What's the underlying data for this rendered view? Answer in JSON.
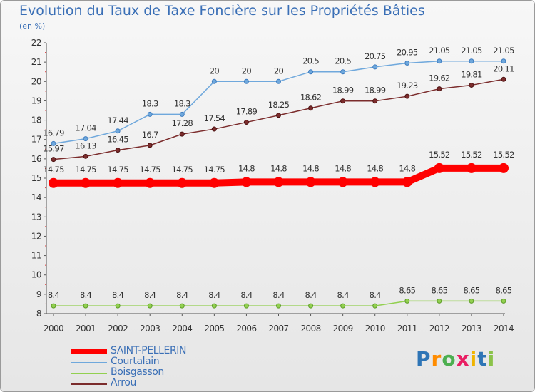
{
  "title": "Evolution du Taux de Taxe Foncière sur les Propriétés Bâties",
  "subtitle": "(en %)",
  "logo": "Proxiti",
  "chart_data": {
    "type": "line",
    "title": "Evolution du Taux de Taxe Foncière sur les Propriétés Bâties",
    "ylabel": "(en %)",
    "xlabel": "",
    "ylim": [
      8,
      22
    ],
    "yticks": [
      8,
      9,
      10,
      11,
      12,
      13,
      14,
      15,
      16,
      17,
      18,
      19,
      20,
      21,
      22
    ],
    "grid": false,
    "legend_position": "bottom-left",
    "x": [
      "2000",
      "2001",
      "2002",
      "2003",
      "2004",
      "2005",
      "2006",
      "2007",
      "2008",
      "2009",
      "2010",
      "2011",
      "2012",
      "2013",
      "2014"
    ],
    "series": [
      {
        "name": "SAINT-PELLERIN",
        "color": "#ff0000",
        "values": [
          14.75,
          14.75,
          14.75,
          14.75,
          14.75,
          14.75,
          14.8,
          14.8,
          14.8,
          14.8,
          14.8,
          14.8,
          15.52,
          15.52,
          15.52
        ],
        "labels": [
          "14.75",
          "14.75",
          "14.75",
          "14.75",
          "14.75",
          "14.75",
          "14.8",
          "14.8",
          "14.8",
          "14.8",
          "14.8",
          "14.8",
          "15.52",
          "15.52",
          "15.52"
        ]
      },
      {
        "name": "Courtalain",
        "color": "#6fa8dc",
        "values": [
          16.79,
          17.04,
          17.44,
          18.3,
          18.3,
          20,
          20,
          20,
          20.5,
          20.5,
          20.75,
          20.95,
          21.05,
          21.05,
          21.05
        ],
        "labels": [
          "16.79",
          "17.04",
          "17.44",
          "18.3",
          "18.3",
          "20",
          "20",
          "20",
          "20.5",
          "20.5",
          "20.75",
          "20.95",
          "21.05",
          "21.05",
          "21.05"
        ]
      },
      {
        "name": "Boisgasson",
        "color": "#92d050",
        "values": [
          8.4,
          8.4,
          8.4,
          8.4,
          8.4,
          8.4,
          8.4,
          8.4,
          8.4,
          8.4,
          8.4,
          8.65,
          8.65,
          8.65,
          8.65
        ],
        "labels": [
          "8.4",
          "8.4",
          "8.4",
          "8.4",
          "8.4",
          "8.4",
          "8.4",
          "8.4",
          "8.4",
          "8.4",
          "8.4",
          "8.65",
          "8.65",
          "8.65",
          "8.65"
        ]
      },
      {
        "name": "Arrou",
        "color": "#7b2c2c",
        "values": [
          15.97,
          16.13,
          16.45,
          16.7,
          17.28,
          17.54,
          17.89,
          18.25,
          18.62,
          18.99,
          18.99,
          19.23,
          19.62,
          19.81,
          20.11
        ],
        "labels": [
          "15.97",
          "16.13",
          "16.45",
          "16.7",
          "17.28",
          "17.54",
          "17.89",
          "18.25",
          "18.62",
          "18.99",
          "18.99",
          "19.23",
          "19.62",
          "19.81",
          "20.11"
        ]
      }
    ]
  }
}
